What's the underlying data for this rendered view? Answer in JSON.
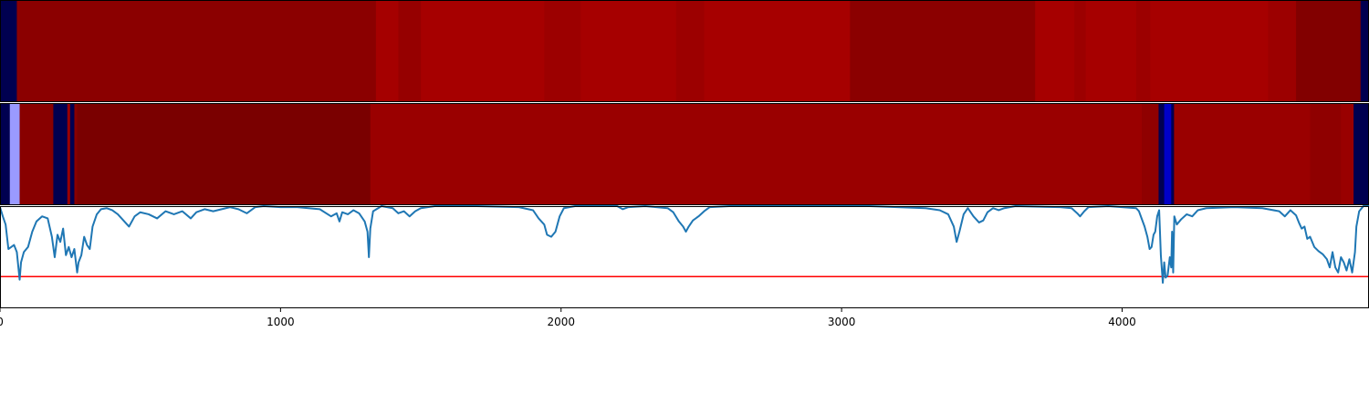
{
  "chart_data": [
    {
      "type": "heatmap",
      "xlim": [
        0,
        4880
      ],
      "segments": [
        {
          "x0": 0,
          "x1": 60,
          "color": "#000050"
        },
        {
          "x0": 60,
          "x1": 1340,
          "color": "#8b0000"
        },
        {
          "x0": 1340,
          "x1": 1420,
          "color": "#a50000"
        },
        {
          "x0": 1420,
          "x1": 1500,
          "color": "#960000"
        },
        {
          "x0": 1500,
          "x1": 1940,
          "color": "#a60000"
        },
        {
          "x0": 1940,
          "x1": 2070,
          "color": "#9c0000"
        },
        {
          "x0": 2070,
          "x1": 2410,
          "color": "#a60000"
        },
        {
          "x0": 2410,
          "x1": 2510,
          "color": "#9c0000"
        },
        {
          "x0": 2510,
          "x1": 3030,
          "color": "#a60000"
        },
        {
          "x0": 3030,
          "x1": 3690,
          "color": "#8b0000"
        },
        {
          "x0": 3690,
          "x1": 3830,
          "color": "#a60000"
        },
        {
          "x0": 3830,
          "x1": 3870,
          "color": "#9c0000"
        },
        {
          "x0": 3870,
          "x1": 4050,
          "color": "#a60000"
        },
        {
          "x0": 4050,
          "x1": 4100,
          "color": "#9c0000"
        },
        {
          "x0": 4100,
          "x1": 4520,
          "color": "#a60000"
        },
        {
          "x0": 4520,
          "x1": 4620,
          "color": "#9c0000"
        },
        {
          "x0": 4620,
          "x1": 4850,
          "color": "#820000"
        },
        {
          "x0": 4850,
          "x1": 4880,
          "color": "#000050"
        }
      ]
    },
    {
      "type": "heatmap",
      "xlim": [
        0,
        4880
      ],
      "segments": [
        {
          "x0": 0,
          "x1": 35,
          "color": "#000050"
        },
        {
          "x0": 35,
          "x1": 70,
          "color": "#9a9aff"
        },
        {
          "x0": 70,
          "x1": 190,
          "color": "#880000"
        },
        {
          "x0": 190,
          "x1": 240,
          "color": "#000050"
        },
        {
          "x0": 240,
          "x1": 250,
          "color": "#990000"
        },
        {
          "x0": 250,
          "x1": 265,
          "color": "#000050"
        },
        {
          "x0": 265,
          "x1": 275,
          "color": "#880000"
        },
        {
          "x0": 275,
          "x1": 1320,
          "color": "#7a0000"
        },
        {
          "x0": 1320,
          "x1": 4070,
          "color": "#9a0000"
        },
        {
          "x0": 4070,
          "x1": 4130,
          "color": "#8f0000"
        },
        {
          "x0": 4130,
          "x1": 4150,
          "color": "#000050"
        },
        {
          "x0": 4150,
          "x1": 4175,
          "color": "#0000c8"
        },
        {
          "x0": 4175,
          "x1": 4185,
          "color": "#000050"
        },
        {
          "x0": 4185,
          "x1": 4670,
          "color": "#9a0000"
        },
        {
          "x0": 4670,
          "x1": 4780,
          "color": "#8f0000"
        },
        {
          "x0": 4780,
          "x1": 4825,
          "color": "#990000"
        },
        {
          "x0": 4825,
          "x1": 4880,
          "color": "#000050"
        }
      ]
    },
    {
      "type": "line",
      "xlim": [
        0,
        4880
      ],
      "ylim": [
        0,
        1
      ],
      "xticks": [
        0,
        1000,
        2000,
        3000,
        4000
      ],
      "threshold": {
        "y": 0.31,
        "color": "#ff0000"
      },
      "series": [
        {
          "color": "#1f77b4",
          "points": [
            [
              0,
              0.99
            ],
            [
              10,
              0.9
            ],
            [
              20,
              0.82
            ],
            [
              30,
              0.58
            ],
            [
              40,
              0.6
            ],
            [
              50,
              0.62
            ],
            [
              60,
              0.55
            ],
            [
              70,
              0.28
            ],
            [
              75,
              0.45
            ],
            [
              85,
              0.55
            ],
            [
              100,
              0.6
            ],
            [
              115,
              0.75
            ],
            [
              130,
              0.85
            ],
            [
              150,
              0.9
            ],
            [
              170,
              0.88
            ],
            [
              185,
              0.7
            ],
            [
              195,
              0.5
            ],
            [
              205,
              0.72
            ],
            [
              215,
              0.65
            ],
            [
              225,
              0.78
            ],
            [
              235,
              0.52
            ],
            [
              245,
              0.6
            ],
            [
              255,
              0.5
            ],
            [
              265,
              0.58
            ],
            [
              275,
              0.35
            ],
            [
              280,
              0.45
            ],
            [
              290,
              0.52
            ],
            [
              300,
              0.7
            ],
            [
              310,
              0.62
            ],
            [
              320,
              0.58
            ],
            [
              330,
              0.8
            ],
            [
              345,
              0.92
            ],
            [
              360,
              0.97
            ],
            [
              380,
              0.98
            ],
            [
              400,
              0.96
            ],
            [
              420,
              0.92
            ],
            [
              440,
              0.86
            ],
            [
              460,
              0.8
            ],
            [
              480,
              0.9
            ],
            [
              500,
              0.94
            ],
            [
              530,
              0.92
            ],
            [
              560,
              0.88
            ],
            [
              590,
              0.95
            ],
            [
              620,
              0.92
            ],
            [
              650,
              0.95
            ],
            [
              680,
              0.88
            ],
            [
              700,
              0.94
            ],
            [
              730,
              0.97
            ],
            [
              760,
              0.95
            ],
            [
              790,
              0.97
            ],
            [
              820,
              0.99
            ],
            [
              850,
              0.97
            ],
            [
              880,
              0.93
            ],
            [
              910,
              0.99
            ],
            [
              940,
              1.0
            ],
            [
              1000,
              0.99
            ],
            [
              1060,
              0.99
            ],
            [
              1100,
              0.98
            ],
            [
              1140,
              0.97
            ],
            [
              1180,
              0.9
            ],
            [
              1200,
              0.93
            ],
            [
              1210,
              0.85
            ],
            [
              1220,
              0.94
            ],
            [
              1240,
              0.92
            ],
            [
              1260,
              0.96
            ],
            [
              1280,
              0.93
            ],
            [
              1300,
              0.85
            ],
            [
              1310,
              0.75
            ],
            [
              1315,
              0.5
            ],
            [
              1320,
              0.78
            ],
            [
              1330,
              0.95
            ],
            [
              1360,
              1.0
            ],
            [
              1400,
              0.98
            ],
            [
              1420,
              0.93
            ],
            [
              1440,
              0.95
            ],
            [
              1460,
              0.9
            ],
            [
              1480,
              0.95
            ],
            [
              1500,
              0.98
            ],
            [
              1550,
              1.0
            ],
            [
              1700,
              1.0
            ],
            [
              1850,
              0.99
            ],
            [
              1900,
              0.96
            ],
            [
              1920,
              0.88
            ],
            [
              1940,
              0.82
            ],
            [
              1950,
              0.72
            ],
            [
              1965,
              0.7
            ],
            [
              1980,
              0.75
            ],
            [
              1995,
              0.9
            ],
            [
              2010,
              0.98
            ],
            [
              2050,
              1.0
            ],
            [
              2200,
              1.0
            ],
            [
              2220,
              0.97
            ],
            [
              2240,
              0.99
            ],
            [
              2300,
              1.0
            ],
            [
              2380,
              0.98
            ],
            [
              2400,
              0.94
            ],
            [
              2420,
              0.85
            ],
            [
              2435,
              0.8
            ],
            [
              2445,
              0.75
            ],
            [
              2455,
              0.8
            ],
            [
              2470,
              0.86
            ],
            [
              2490,
              0.9
            ],
            [
              2510,
              0.95
            ],
            [
              2530,
              0.99
            ],
            [
              2600,
              1.0
            ],
            [
              3100,
              1.0
            ],
            [
              3300,
              0.98
            ],
            [
              3350,
              0.96
            ],
            [
              3380,
              0.92
            ],
            [
              3400,
              0.8
            ],
            [
              3410,
              0.65
            ],
            [
              3420,
              0.75
            ],
            [
              3435,
              0.92
            ],
            [
              3450,
              0.98
            ],
            [
              3470,
              0.9
            ],
            [
              3490,
              0.84
            ],
            [
              3505,
              0.86
            ],
            [
              3520,
              0.94
            ],
            [
              3540,
              0.98
            ],
            [
              3560,
              0.96
            ],
            [
              3580,
              0.98
            ],
            [
              3620,
              1.0
            ],
            [
              3780,
              0.99
            ],
            [
              3820,
              0.98
            ],
            [
              3840,
              0.93
            ],
            [
              3850,
              0.9
            ],
            [
              3865,
              0.95
            ],
            [
              3880,
              0.99
            ],
            [
              3950,
              1.0
            ],
            [
              4050,
              0.98
            ],
            [
              4060,
              0.95
            ],
            [
              4080,
              0.8
            ],
            [
              4090,
              0.7
            ],
            [
              4098,
              0.58
            ],
            [
              4105,
              0.6
            ],
            [
              4112,
              0.72
            ],
            [
              4118,
              0.75
            ],
            [
              4125,
              0.9
            ],
            [
              4132,
              0.96
            ],
            [
              4138,
              0.52
            ],
            [
              4145,
              0.25
            ],
            [
              4150,
              0.45
            ],
            [
              4155,
              0.3
            ],
            [
              4162,
              0.32
            ],
            [
              4170,
              0.5
            ],
            [
              4175,
              0.4
            ],
            [
              4178,
              0.75
            ],
            [
              4182,
              0.35
            ],
            [
              4186,
              0.9
            ],
            [
              4195,
              0.82
            ],
            [
              4210,
              0.87
            ],
            [
              4230,
              0.92
            ],
            [
              4250,
              0.9
            ],
            [
              4270,
              0.96
            ],
            [
              4300,
              0.98
            ],
            [
              4400,
              0.99
            ],
            [
              4500,
              0.98
            ],
            [
              4560,
              0.95
            ],
            [
              4580,
              0.9
            ],
            [
              4600,
              0.96
            ],
            [
              4620,
              0.91
            ],
            [
              4630,
              0.84
            ],
            [
              4640,
              0.78
            ],
            [
              4650,
              0.8
            ],
            [
              4660,
              0.68
            ],
            [
              4670,
              0.7
            ],
            [
              4685,
              0.6
            ],
            [
              4700,
              0.56
            ],
            [
              4715,
              0.53
            ],
            [
              4730,
              0.48
            ],
            [
              4740,
              0.4
            ],
            [
              4750,
              0.55
            ],
            [
              4760,
              0.4
            ],
            [
              4770,
              0.35
            ],
            [
              4780,
              0.5
            ],
            [
              4790,
              0.45
            ],
            [
              4800,
              0.37
            ],
            [
              4810,
              0.48
            ],
            [
              4820,
              0.35
            ],
            [
              4830,
              0.55
            ],
            [
              4835,
              0.8
            ],
            [
              4845,
              0.95
            ],
            [
              4860,
              1.0
            ],
            [
              4880,
              1.0
            ]
          ]
        }
      ]
    }
  ]
}
